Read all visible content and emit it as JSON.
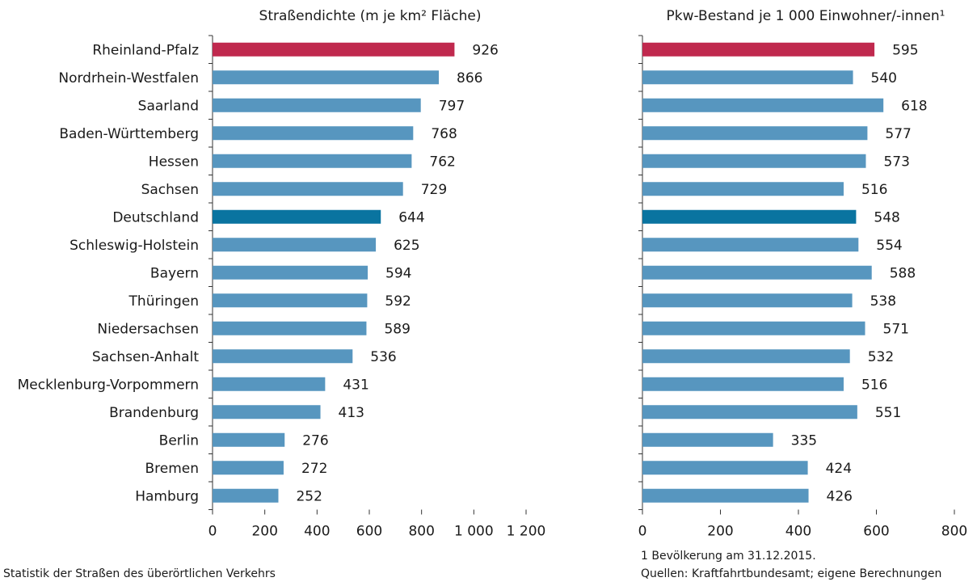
{
  "chart_data": [
    {
      "type": "bar",
      "orientation": "horizontal",
      "title": "Straßendichte (m je km² Fläche)",
      "categories": [
        "Rheinland-Pfalz",
        "Nordrhein-Westfalen",
        "Saarland",
        "Baden-Württemberg",
        "Hessen",
        "Sachsen",
        "Deutschland",
        "Schleswig-Holstein",
        "Bayern",
        "Thüringen",
        "Niedersachsen",
        "Sachsen-Anhalt",
        "Mecklenburg-Vorpommern",
        "Brandenburg",
        "Berlin",
        "Bremen",
        "Hamburg"
      ],
      "values": [
        926,
        866,
        797,
        768,
        762,
        729,
        644,
        625,
        594,
        592,
        589,
        536,
        431,
        413,
        276,
        272,
        252
      ],
      "colors": [
        "#c0294e",
        "#5796bf",
        "#5796bf",
        "#5796bf",
        "#5796bf",
        "#5796bf",
        "#0a74a0",
        "#5796bf",
        "#5796bf",
        "#5796bf",
        "#5796bf",
        "#5796bf",
        "#5796bf",
        "#5796bf",
        "#5796bf",
        "#5796bf",
        "#5796bf"
      ],
      "xlim": [
        0,
        1200
      ],
      "xticks": [
        0,
        200,
        400,
        600,
        800,
        {
          "value": 1000,
          "label": "1 000"
        },
        {
          "value": 1200,
          "label": "1 200"
        }
      ],
      "notes": [
        "Statistik der Straßen des überörtlichen Verkehrs"
      ]
    },
    {
      "type": "bar",
      "orientation": "horizontal",
      "title": "Pkw-Bestand je 1 000 Einwohner/-innen¹",
      "values": [
        595,
        540,
        618,
        577,
        573,
        516,
        548,
        554,
        588,
        538,
        571,
        532,
        516,
        551,
        335,
        424,
        426
      ],
      "colors": [
        "#c0294e",
        "#5796bf",
        "#5796bf",
        "#5796bf",
        "#5796bf",
        "#5796bf",
        "#0a74a0",
        "#5796bf",
        "#5796bf",
        "#5796bf",
        "#5796bf",
        "#5796bf",
        "#5796bf",
        "#5796bf",
        "#5796bf",
        "#5796bf",
        "#5796bf"
      ],
      "xlim": [
        0,
        800
      ],
      "xticks": [
        0,
        200,
        400,
        600,
        800
      ],
      "notes": [
        "1 Bevölkerung am 31.12.2015.",
        "Quellen: Kraftfahrtbundesamt; eigene Berechnungen"
      ]
    }
  ]
}
